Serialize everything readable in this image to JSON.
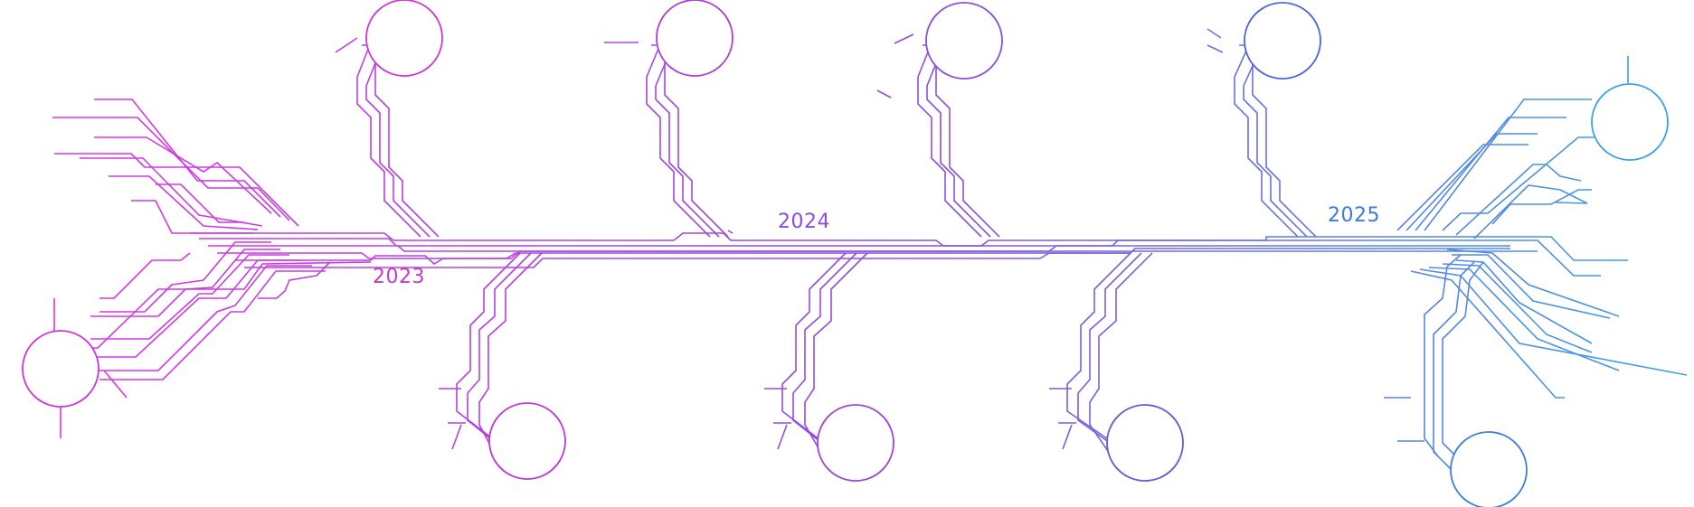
{
  "timeline": {
    "years": [
      {
        "label": "2023"
      },
      {
        "label": "2024"
      },
      {
        "label": "2025"
      }
    ],
    "gradient": {
      "start": "#e233e6",
      "mid": "#8a4ee0",
      "end": "#3aa3e6"
    },
    "milestones": [
      {
        "id": "m1",
        "side": "bottom",
        "year": "2023"
      },
      {
        "id": "m2",
        "side": "top",
        "year": "2023"
      },
      {
        "id": "m3",
        "side": "bottom",
        "year": "2024"
      },
      {
        "id": "m4",
        "side": "top",
        "year": "2024"
      },
      {
        "id": "m5",
        "side": "bottom",
        "year": "2024"
      },
      {
        "id": "m6",
        "side": "top",
        "year": "2024"
      },
      {
        "id": "m7",
        "side": "bottom",
        "year": "2025"
      },
      {
        "id": "m8",
        "side": "top",
        "year": "2025"
      },
      {
        "id": "m9",
        "side": "bottom",
        "year": "2025"
      },
      {
        "id": "m10",
        "side": "top",
        "year": "2025"
      }
    ]
  }
}
